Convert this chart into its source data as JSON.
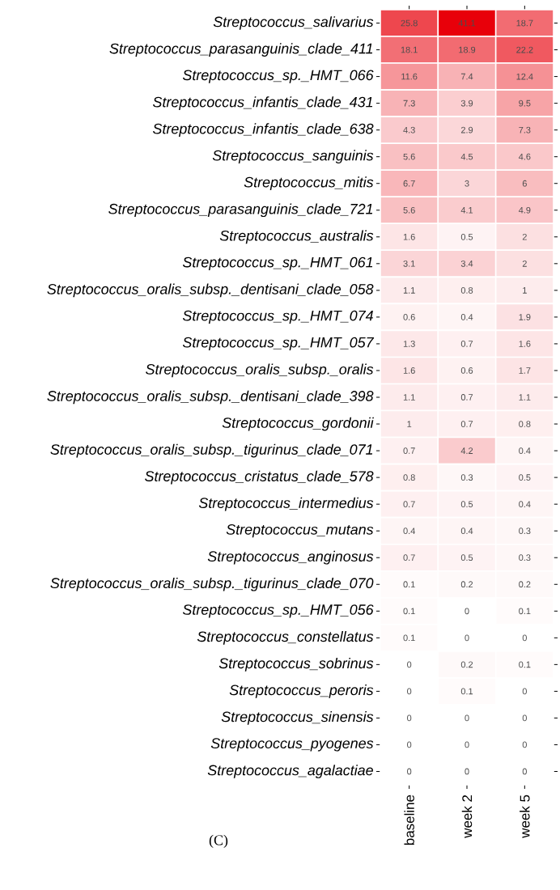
{
  "chart_data": {
    "type": "heatmap",
    "categories": [
      "baseline",
      "week 2",
      "week 5"
    ],
    "y_categories": [
      "Streptococcus_salivarius",
      "Streptococcus_parasanguinis_clade_411",
      "Streptococcus_sp._HMT_066",
      "Streptococcus_infantis_clade_431",
      "Streptococcus_infantis_clade_638",
      "Streptococcus_sanguinis",
      "Streptococcus_mitis",
      "Streptococcus_parasanguinis_clade_721",
      "Streptococcus_australis",
      "Streptococcus_sp._HMT_061",
      "Streptococcus_oralis_subsp._dentisani_clade_058",
      "Streptococcus_sp._HMT_074",
      "Streptococcus_sp._HMT_057",
      "Streptococcus_oralis_subsp._oralis",
      "Streptococcus_oralis_subsp._dentisani_clade_398",
      "Streptococcus_gordonii",
      "Streptococcus_oralis_subsp._tigurinus_clade_071",
      "Streptococcus_cristatus_clade_578",
      "Streptococcus_intermedius",
      "Streptococcus_mutans",
      "Streptococcus_anginosus",
      "Streptococcus_oralis_subsp._tigurinus_clade_070",
      "Streptococcus_sp._HMT_056",
      "Streptococcus_constellatus",
      "Streptococcus_sobrinus",
      "Streptococcus_peroris",
      "Streptococcus_sinensis",
      "Streptococcus_pyogenes",
      "Streptococcus_agalactiae"
    ],
    "cells": [
      [
        25.8,
        41.1,
        18.7
      ],
      [
        18.1,
        18.9,
        22.2
      ],
      [
        11.6,
        7.4,
        12.4
      ],
      [
        7.3,
        3.9,
        9.5
      ],
      [
        4.3,
        2.9,
        7.3
      ],
      [
        5.6,
        4.5,
        4.6
      ],
      [
        6.7,
        3,
        6
      ],
      [
        5.6,
        4.1,
        4.9
      ],
      [
        1.6,
        0.5,
        2
      ],
      [
        3.1,
        3.4,
        2
      ],
      [
        1.1,
        0.8,
        1
      ],
      [
        0.6,
        0.4,
        1.9
      ],
      [
        1.3,
        0.7,
        1.6
      ],
      [
        1.6,
        0.6,
        1.7
      ],
      [
        1.1,
        0.7,
        1.1
      ],
      [
        1,
        0.7,
        0.8
      ],
      [
        0.7,
        4.2,
        0.4
      ],
      [
        0.8,
        0.3,
        0.5
      ],
      [
        0.7,
        0.5,
        0.4
      ],
      [
        0.4,
        0.4,
        0.3
      ],
      [
        0.7,
        0.5,
        0.3
      ],
      [
        0.1,
        0.2,
        0.2
      ],
      [
        0.1,
        0,
        0.1
      ],
      [
        0.1,
        0,
        0
      ],
      [
        0,
        0.2,
        0.1
      ],
      [
        0,
        0.1,
        0
      ],
      [
        0,
        0,
        0
      ],
      [
        0,
        0,
        0
      ],
      [
        0,
        0,
        0
      ]
    ],
    "data_labels": true,
    "annotations": [
      "(C)"
    ]
  }
}
